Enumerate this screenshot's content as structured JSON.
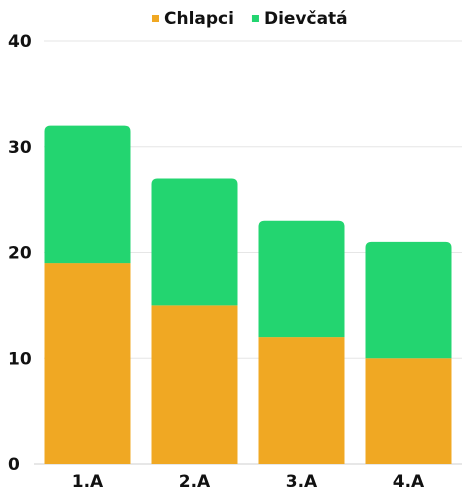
{
  "chart_data": {
    "type": "bar",
    "stacked": true,
    "categories": [
      "1.A",
      "2.A",
      "3.A",
      "4.A"
    ],
    "series": [
      {
        "name": "Chlapci",
        "values": [
          19,
          15,
          12,
          10
        ],
        "color": "#F0A823"
      },
      {
        "name": "Dievčatá",
        "values": [
          13,
          12,
          11,
          11
        ],
        "color": "#23D570"
      }
    ],
    "ylim": [
      0,
      40
    ],
    "yticks": [
      0,
      10,
      20,
      30,
      40
    ],
    "grid": true,
    "legend_position": "top-center",
    "title": "",
    "xlabel": "",
    "ylabel": ""
  }
}
